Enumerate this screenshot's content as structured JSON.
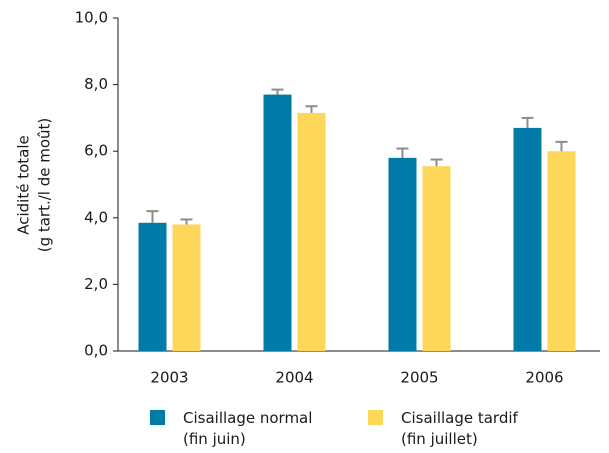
{
  "chart_data": {
    "type": "bar",
    "ylabel": [
      "Acidité totale",
      "(g tart./l de moût)"
    ],
    "categories": [
      "2003",
      "2004",
      "2005",
      "2006"
    ],
    "series": [
      {
        "name": "Cisaillage normal (fin juin)",
        "color": "#007aa6",
        "values": [
          3.85,
          7.7,
          5.8,
          6.7
        ],
        "errors": [
          0.35,
          0.15,
          0.28,
          0.3
        ]
      },
      {
        "name": "Cisaillage tardif (fin juillet)",
        "color": "#fdd75a",
        "values": [
          3.8,
          7.15,
          5.55,
          6.0
        ],
        "errors": [
          0.15,
          0.2,
          0.2,
          0.28
        ]
      }
    ],
    "error_color": "#8c8c8c",
    "ylim": [
      0,
      10
    ],
    "yticks": [
      {
        "value": 0,
        "label": "0,0"
      },
      {
        "value": 2,
        "label": "2,0"
      },
      {
        "value": 4,
        "label": "4,0"
      },
      {
        "value": 6,
        "label": "6,0"
      },
      {
        "value": 8,
        "label": "8,0"
      },
      {
        "value": 10,
        "label": "10,0"
      }
    ],
    "legend": "bottom"
  }
}
